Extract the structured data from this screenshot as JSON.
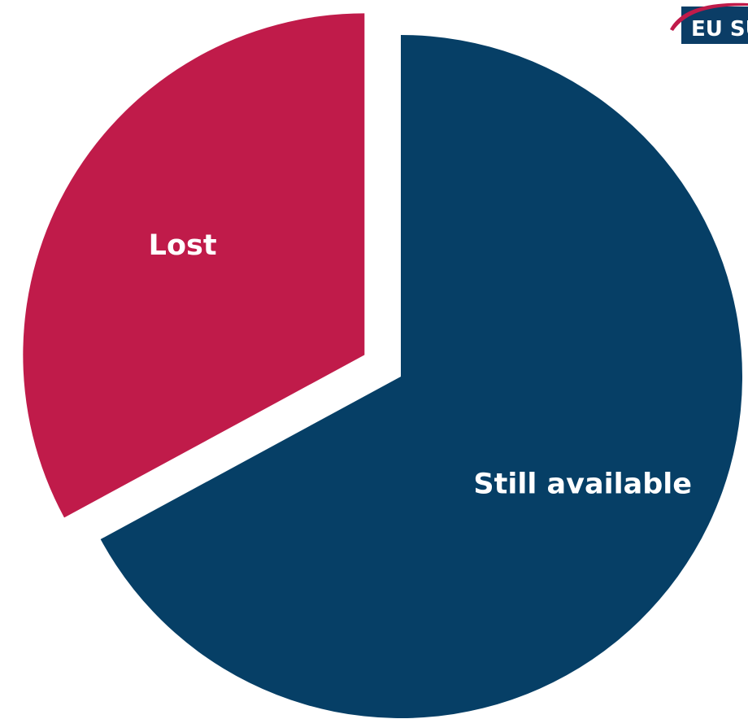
{
  "chart_data": {
    "type": "pie",
    "slices": [
      {
        "label": "Lost",
        "value": 32.9,
        "color": "#c01b4a",
        "exploded": true
      },
      {
        "label": "Still available",
        "value": 67.1,
        "color": "#063f66",
        "exploded": false
      }
    ],
    "start_angle_deg": 0,
    "direction": "counterclockwise",
    "legend": "none",
    "data_labels": "inside"
  },
  "logo": {
    "text": "EU SU",
    "bg_color": "#0b3d66",
    "accent_color": "#c01b4a"
  }
}
